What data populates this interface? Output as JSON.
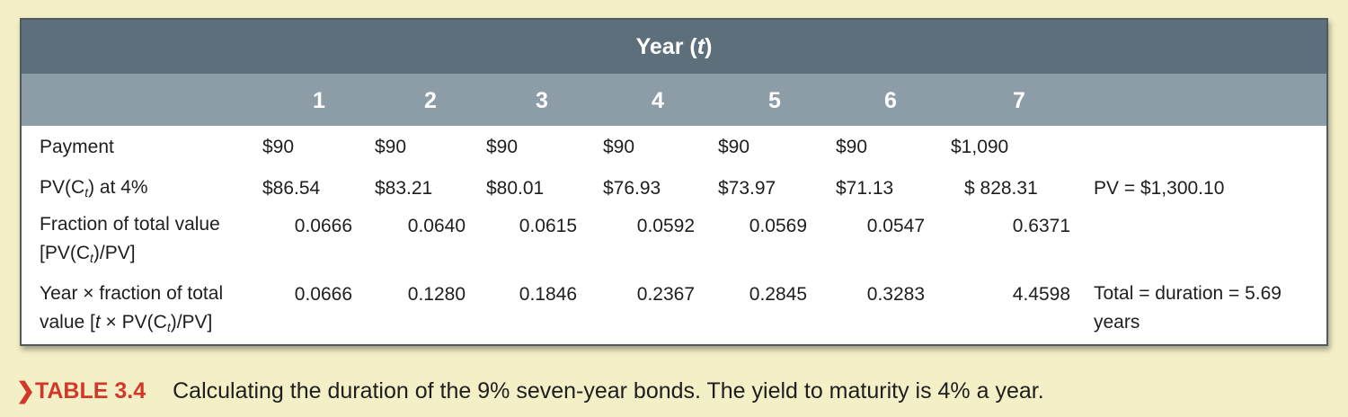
{
  "header": {
    "year_label": "Year",
    "year_var": "t"
  },
  "columns": [
    "1",
    "2",
    "3",
    "4",
    "5",
    "6",
    "7"
  ],
  "rows": {
    "payment": {
      "label": "Payment",
      "values": [
        "$90",
        "$90",
        "$90",
        "$90",
        "$90",
        "$90",
        "$1,090"
      ]
    },
    "pv": {
      "label_pre": "PV(C",
      "label_sub": "t",
      "label_post": ") at 4%",
      "values": [
        "$86.54",
        "$83.21",
        "$80.01",
        "$76.93",
        "$73.97",
        "$71.13",
        "$ 828.31"
      ],
      "extra": "PV = $1,300.10"
    },
    "fraction": {
      "label_line1": "Fraction of total value",
      "label_line2_pre": "[PV(C",
      "label_line2_sub": "t",
      "label_line2_post": ")/PV]",
      "values": [
        "0.0666",
        "0.0640",
        "0.0615",
        "0.0592",
        "0.0569",
        "0.0547",
        "0.6371"
      ]
    },
    "year_fraction": {
      "label_line1": "Year × fraction of total",
      "label_line2_pre": "value [",
      "label_line2_t": "t",
      "label_line2_mid": " × PV(C",
      "label_line2_sub": "t",
      "label_line2_post": ")/PV]",
      "values": [
        "0.0666",
        "0.1280",
        "0.1846",
        "0.2367",
        "0.2845",
        "0.3283",
        "4.4598"
      ],
      "extra_line1": "Total = duration = 5.69",
      "extra_line2": "years"
    }
  },
  "caption": {
    "arrow": "❯",
    "tag": "TABLE 3.4",
    "text": "Calculating the duration of the 9% seven-year bonds. The yield to maturity is 4% a year."
  },
  "colors": {
    "header_dark": "#5e6f7c",
    "header_light": "#8c9da7",
    "background": "#f3efc6",
    "accent": "#d2382a"
  }
}
